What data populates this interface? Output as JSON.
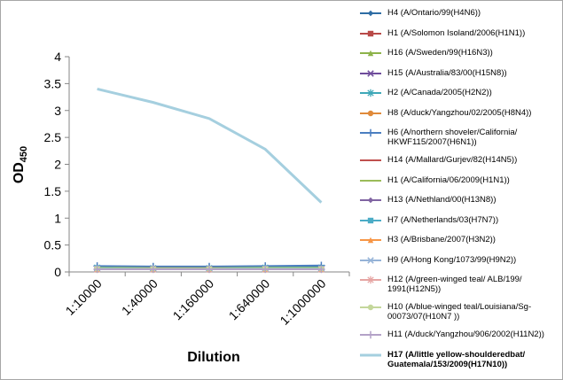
{
  "chart_data": {
    "type": "line",
    "xlabel": "Dilution",
    "ylabel_main": "OD",
    "ylabel_sub": "450",
    "ylim": [
      0,
      4
    ],
    "yticks": [
      "0",
      "0.5",
      "1",
      "1.5",
      "2",
      "2.5",
      "3",
      "3.5",
      "4"
    ],
    "categories": [
      "1:10000",
      "1:40000",
      "1:160000",
      "1:640000",
      "1:1000000"
    ],
    "legend_position": "right",
    "series": [
      {
        "name": "H4 (A/Ontario/99(H4N6))",
        "color": "#2e6da4",
        "marker": "diamond",
        "values": [
          0.09,
          0.08,
          0.08,
          0.09,
          0.09
        ]
      },
      {
        "name": "H1 (A/Solomon Isoland/2006(H1N1))",
        "color": "#b94a48",
        "marker": "square",
        "values": [
          0.06,
          0.05,
          0.05,
          0.06,
          0.06
        ]
      },
      {
        "name": "H16 (A/Sweden/99(H16N3))",
        "color": "#8db34a",
        "marker": "triangle",
        "values": [
          0.07,
          0.06,
          0.06,
          0.07,
          0.07
        ]
      },
      {
        "name": "H15 (A/Australia/83/00(H15N8))",
        "color": "#6f4c9b",
        "marker": "x",
        "values": [
          0.06,
          0.06,
          0.05,
          0.06,
          0.06
        ]
      },
      {
        "name": "H2 (A/Canada/2005(H2N2))",
        "color": "#3ea8b8",
        "marker": "star",
        "values": [
          0.08,
          0.07,
          0.07,
          0.08,
          0.08
        ]
      },
      {
        "name": "H8 (A/duck/Yangzhou/02/2005(H8N4))",
        "color": "#e08a3a",
        "marker": "circle",
        "values": [
          0.05,
          0.05,
          0.05,
          0.05,
          0.05
        ]
      },
      {
        "name": "H6 (A/northern shoveler/California/ HKWF115/2007(H6N1))",
        "color": "#4a7ec0",
        "marker": "plus",
        "values": [
          0.11,
          0.1,
          0.1,
          0.11,
          0.12
        ]
      },
      {
        "name": "H14 (A/Mallard/Gurjev/82(H14N5))",
        "color": "#c0504d",
        "marker": "none",
        "values": [
          0.07,
          0.07,
          0.07,
          0.07,
          0.07
        ]
      },
      {
        "name": "H1 (A/California/06/2009(H1N1))",
        "color": "#9bbb59",
        "marker": "none",
        "values": [
          0.08,
          0.07,
          0.07,
          0.08,
          0.08
        ]
      },
      {
        "name": "H13 (A/Nethland/00(H13N8))",
        "color": "#8064a2",
        "marker": "diamond",
        "values": [
          0.06,
          0.06,
          0.06,
          0.06,
          0.06
        ]
      },
      {
        "name": "H7 (A/Netherlands/03(H7N7))",
        "color": "#4bacc6",
        "marker": "square",
        "values": [
          0.07,
          0.06,
          0.06,
          0.07,
          0.07
        ]
      },
      {
        "name": "H3 (A/Brisbane/2007(H3N2))",
        "color": "#f79646",
        "marker": "triangle",
        "values": [
          0.05,
          0.05,
          0.05,
          0.05,
          0.05
        ]
      },
      {
        "name": "H9 (A/Hong Kong/1073/99(H9N2))",
        "color": "#95b3d7",
        "marker": "x",
        "values": [
          0.06,
          0.05,
          0.05,
          0.06,
          0.06
        ]
      },
      {
        "name": "H12 (A/green-winged teal/ ALB/199/ 1991(H12N5))",
        "color": "#e6a5a3",
        "marker": "star",
        "values": [
          0.05,
          0.05,
          0.05,
          0.05,
          0.05
        ]
      },
      {
        "name": "H10 (A/blue-winged teal/Louisiana/Sg-00073/07(H10N7 ))",
        "color": "#c4d79b",
        "marker": "circle",
        "values": [
          0.06,
          0.06,
          0.06,
          0.06,
          0.06
        ]
      },
      {
        "name": "H11 (A/duck/Yangzhou/906/2002(H11N2))",
        "color": "#b3a2c7",
        "marker": "plus",
        "values": [
          0.05,
          0.05,
          0.05,
          0.05,
          0.05
        ]
      },
      {
        "name": "H17 (A/little yellow-shoulderedbat/ Guatemala/153/2009(H17N10))",
        "color": "#a5cfdf",
        "marker": "none",
        "bold": true,
        "values": [
          3.4,
          3.15,
          2.85,
          2.28,
          1.29
        ]
      }
    ]
  }
}
